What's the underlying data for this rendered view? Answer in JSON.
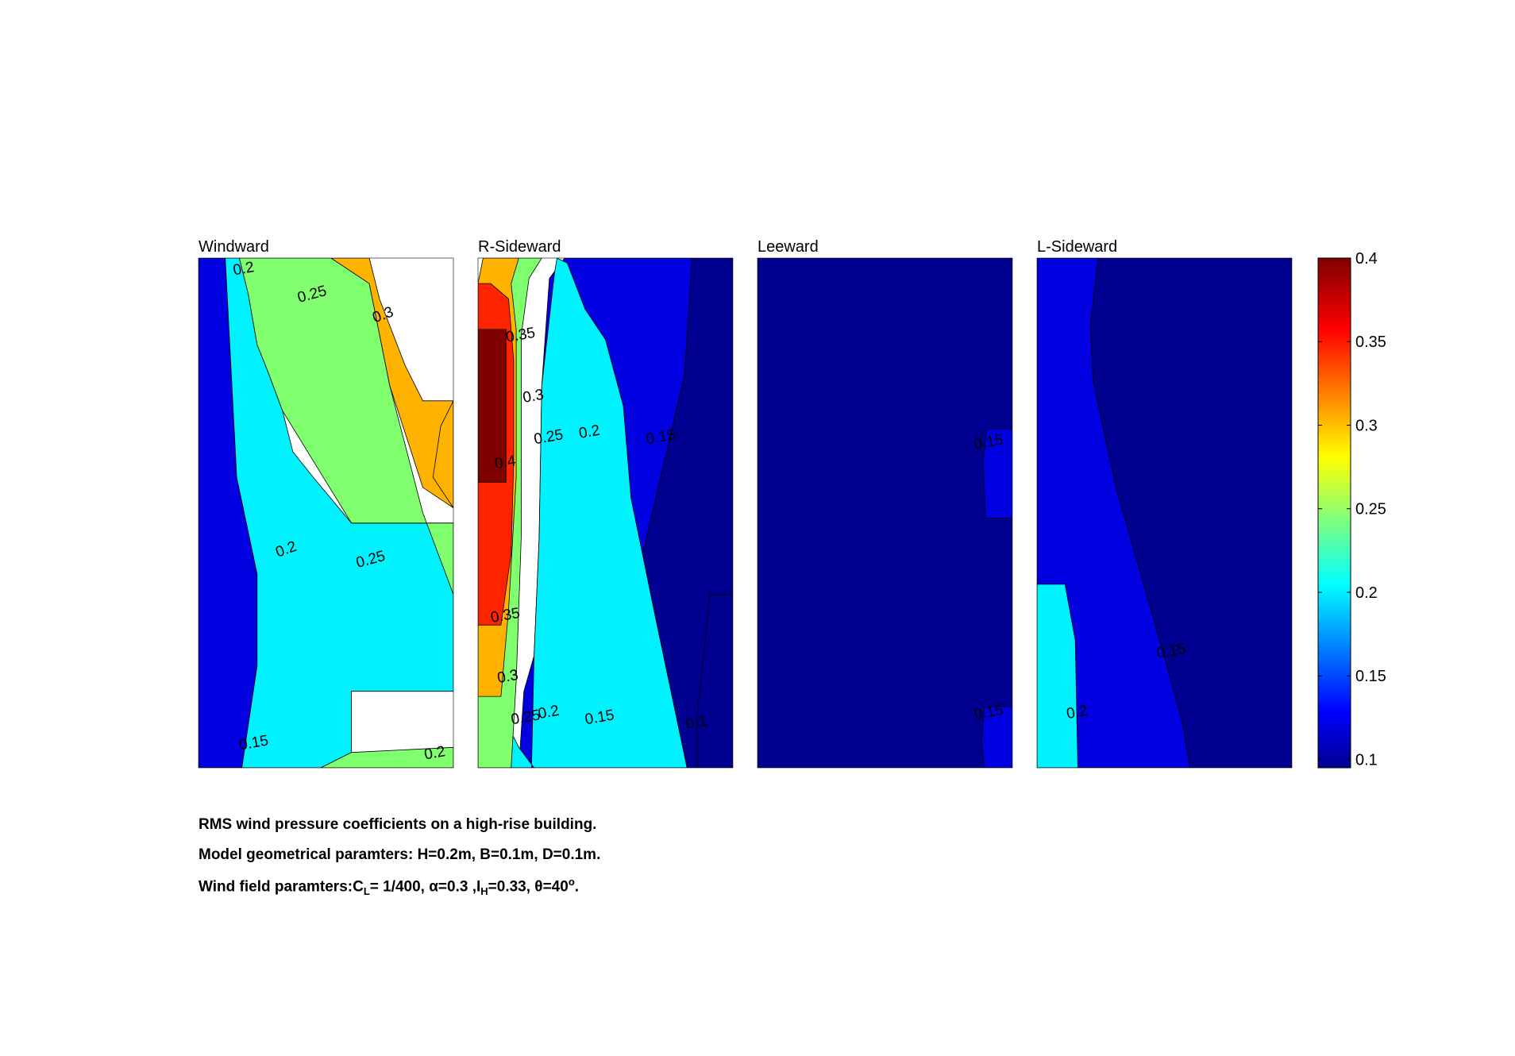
{
  "chart_data": {
    "type": "heatmap",
    "subtype": "filled-contour",
    "panels": [
      {
        "title": "Windward",
        "regions": [
          {
            "level": 0.15,
            "points": [
              [
                0,
                0
              ],
              [
                0.17,
                0
              ],
              [
                0.23,
                0.2
              ],
              [
                0.23,
                0.38
              ],
              [
                0.15,
                0.57
              ],
              [
                0.105,
                1
              ],
              [
                0,
                1
              ]
            ]
          },
          {
            "level": 0.2,
            "points": [
              [
                0.17,
                0
              ],
              [
                0.48,
                0
              ],
              [
                0.6,
                0.03
              ],
              [
                0.6,
                0.15
              ],
              [
                1,
                0.15
              ],
              [
                1,
                0.48
              ],
              [
                0.6,
                0.48
              ],
              [
                0.45,
                0.57
              ],
              [
                0.37,
                0.62
              ],
              [
                0.33,
                0.7
              ],
              [
                0.27,
                0.78
              ],
              [
                0.23,
                0.83
              ],
              [
                0.195,
                0.93
              ],
              [
                0.16,
                1
              ],
              [
                0.105,
                1
              ],
              [
                0.15,
                0.57
              ],
              [
                0.23,
                0.38
              ],
              [
                0.23,
                0.2
              ]
            ]
          },
          {
            "level": 0.15,
            "points": [
              [
                0.75,
                0
              ],
              [
                1,
                0
              ],
              [
                1,
                0.04
              ]
            ]
          },
          {
            "level": 0.25,
            "points": [
              [
                0.48,
                0
              ],
              [
                1,
                0
              ],
              [
                1,
                0.04
              ],
              [
                0.6,
                0.03
              ]
            ]
          },
          {
            "level": 0.25,
            "points": [
              [
                1,
                0.24
              ],
              [
                1,
                0.48
              ],
              [
                0.6,
                0.48
              ],
              [
                0.33,
                0.7
              ],
              [
                0.27,
                0.78
              ],
              [
                0.23,
                0.83
              ],
              [
                0.195,
                0.93
              ],
              [
                0.16,
                1
              ],
              [
                0.52,
                1
              ],
              [
                0.67,
                0.95
              ],
              [
                0.75,
                0.75
              ],
              [
                0.88,
                0.5
              ],
              [
                1,
                0.34
              ]
            ]
          },
          {
            "level": 0.3,
            "points": [
              [
                1,
                0.51
              ],
              [
                1,
                0.72
              ],
              [
                0.88,
                0.72
              ],
              [
                0.81,
                0.79
              ],
              [
                0.71,
                0.92
              ],
              [
                0.67,
                1
              ],
              [
                0.52,
                1
              ],
              [
                0.67,
                0.95
              ],
              [
                0.75,
                0.75
              ],
              [
                0.88,
                0.55
              ]
            ]
          },
          {
            "level": 0.3,
            "points": [
              [
                1,
                0.51
              ],
              [
                1,
                0.72
              ],
              [
                0.95,
                0.67
              ],
              [
                0.92,
                0.57
              ]
            ]
          }
        ],
        "labels": [
          {
            "text": "0.2",
            "x": 0.18,
            "y": 0.97,
            "rot": 10
          },
          {
            "text": "0.25",
            "x": 0.45,
            "y": 0.92,
            "rot": 15
          },
          {
            "text": "0.3",
            "x": 0.73,
            "y": 0.88,
            "rot": 20
          },
          {
            "text": "0.2",
            "x": 0.35,
            "y": 0.42,
            "rot": 20
          },
          {
            "text": "0.25",
            "x": 0.68,
            "y": 0.4,
            "rot": 15
          },
          {
            "text": "0.15",
            "x": 0.22,
            "y": 0.04,
            "rot": 10
          },
          {
            "text": "0.2",
            "x": 0.93,
            "y": 0.02,
            "rot": 10
          }
        ]
      },
      {
        "title": "R-Sideward",
        "regions": [
          {
            "level": 0.1,
            "points": [
              [
                0.89,
                0
              ],
              [
                1,
                0
              ],
              [
                1,
                1
              ],
              [
                0.84,
                1
              ],
              [
                0.81,
                0.77
              ],
              [
                0.74,
                0.62
              ],
              [
                0.59,
                0.3
              ],
              [
                0.52,
                0.14
              ],
              [
                0.5,
                0
              ]
            ]
          },
          {
            "level": 0.15,
            "points": [
              [
                0.16,
                0
              ],
              [
                0.46,
                0
              ],
              [
                0.5,
                0.14
              ],
              [
                0.52,
                0.14
              ],
              [
                0.59,
                0.3
              ],
              [
                0.74,
                0.62
              ],
              [
                0.81,
                0.77
              ],
              [
                0.84,
                1
              ],
              [
                0.34,
                1
              ],
              [
                0.28,
                0.96
              ],
              [
                0.25,
                0.75
              ],
              [
                0.24,
                0.45
              ],
              [
                0.22,
                0.22
              ],
              [
                0.18,
                0.15
              ]
            ]
          },
          {
            "level": 0.1,
            "points": [
              [
                0.86,
                0
              ],
              [
                1,
                0
              ],
              [
                1,
                0.34
              ],
              [
                0.91,
                0.34
              ],
              [
                0.86,
                0.1
              ]
            ]
          },
          {
            "level": 0.2,
            "points": [
              [
                0.08,
                0
              ],
              [
                0.21,
                0
              ],
              [
                0.22,
                0.22
              ],
              [
                0.24,
                0.45
              ],
              [
                0.25,
                0.75
              ],
              [
                0.3,
                0.97
              ],
              [
                0.31,
                1
              ],
              [
                0.35,
                0.99
              ],
              [
                0.42,
                0.9
              ],
              [
                0.5,
                0.84
              ],
              [
                0.57,
                0.71
              ],
              [
                0.6,
                0.53
              ],
              [
                0.69,
                0.31
              ],
              [
                0.82,
                0
              ],
              [
                0.22,
                0
              ],
              [
                0.16,
                0.04
              ],
              [
                0.13,
                0.07
              ],
              [
                0.1,
                0.09
              ]
            ]
          },
          {
            "level": 0.25,
            "points": [
              [
                0,
                0
              ],
              [
                0.13,
                0
              ],
              [
                0.15,
                0.17
              ],
              [
                0.17,
                0.46
              ],
              [
                0.17,
                0.85
              ],
              [
                0.2,
                0.96
              ],
              [
                0.25,
                1
              ],
              [
                0.06,
                1
              ],
              [
                0,
                0.95
              ]
            ]
          },
          {
            "level": 0.3,
            "points": [
              [
                0,
                0.14
              ],
              [
                0.09,
                0.14
              ],
              [
                0.12,
                0.31
              ],
              [
                0.15,
                0.57
              ],
              [
                0.15,
                0.86
              ],
              [
                0.13,
                0.95
              ],
              [
                0.16,
                1
              ],
              [
                0.02,
                1
              ],
              [
                0,
                0.95
              ]
            ]
          },
          {
            "level": 0.35,
            "points": [
              [
                0,
                0.28
              ],
              [
                0.09,
                0.28
              ],
              [
                0.13,
                0.42
              ],
              [
                0.14,
                0.6
              ],
              [
                0.14,
                0.8
              ],
              [
                0.12,
                0.92
              ],
              [
                0.05,
                0.95
              ],
              [
                0,
                0.95
              ]
            ]
          },
          {
            "level": 0.4,
            "points": [
              [
                0,
                0.56
              ],
              [
                0.11,
                0.56
              ],
              [
                0.11,
                0.86
              ],
              [
                0,
                0.86
              ]
            ]
          }
        ],
        "labels": [
          {
            "text": "0.35",
            "x": 0.17,
            "y": 0.84,
            "rot": 10
          },
          {
            "text": "0.3",
            "x": 0.22,
            "y": 0.72,
            "rot": 10
          },
          {
            "text": "0.4",
            "x": 0.11,
            "y": 0.59,
            "rot": 10
          },
          {
            "text": "0.25",
            "x": 0.28,
            "y": 0.64,
            "rot": 10
          },
          {
            "text": "0.2",
            "x": 0.44,
            "y": 0.65,
            "rot": 10
          },
          {
            "text": "0.15",
            "x": 0.72,
            "y": 0.64,
            "rot": 10
          },
          {
            "text": "0.35",
            "x": 0.11,
            "y": 0.29,
            "rot": 10
          },
          {
            "text": "0.3",
            "x": 0.12,
            "y": 0.17,
            "rot": 10
          },
          {
            "text": "0.25",
            "x": 0.19,
            "y": 0.09,
            "rot": 10
          },
          {
            "text": "0.2",
            "x": 0.28,
            "y": 0.1,
            "rot": 10
          },
          {
            "text": "0.15",
            "x": 0.48,
            "y": 0.09,
            "rot": 10
          },
          {
            "text": "0.1",
            "x": 0.86,
            "y": 0.08,
            "rot": 10
          }
        ]
      },
      {
        "title": "Leeward",
        "regions": [
          {
            "level": 0.1,
            "points": [
              [
                0,
                0
              ],
              [
                1,
                0
              ],
              [
                1,
                1
              ],
              [
                0,
                1
              ]
            ]
          },
          {
            "level": 0.15,
            "points": [
              [
                0.895,
                0.49
              ],
              [
                1,
                0.49
              ],
              [
                1,
                0.665
              ],
              [
                0.9,
                0.665
              ],
              [
                0.885,
                0.6
              ]
            ]
          },
          {
            "level": 0.15,
            "points": [
              [
                0.89,
                0
              ],
              [
                1,
                0
              ],
              [
                1,
                0.12
              ],
              [
                0.89,
                0.12
              ],
              [
                0.88,
                0.05
              ]
            ]
          }
        ],
        "labels": [
          {
            "text": "0.15",
            "x": 0.91,
            "y": 0.63,
            "rot": 10
          },
          {
            "text": "0.15",
            "x": 0.91,
            "y": 0.1,
            "rot": 10
          }
        ]
      },
      {
        "title": "L-Sideward",
        "regions": [
          {
            "level": 0.15,
            "points": [
              [
                0,
                0
              ],
              [
                0.6,
                0
              ],
              [
                0.57,
                0.09
              ],
              [
                0.51,
                0.2
              ],
              [
                0.39,
                0.41
              ],
              [
                0.31,
                0.55
              ],
              [
                0.22,
                0.76
              ],
              [
                0.21,
                0.87
              ],
              [
                0.24,
                1
              ],
              [
                0,
                1
              ]
            ]
          },
          {
            "level": 0.1,
            "points": [
              [
                0.6,
                0
              ],
              [
                1,
                0
              ],
              [
                1,
                1
              ],
              [
                0.24,
                1
              ],
              [
                0.21,
                0.87
              ],
              [
                0.22,
                0.76
              ],
              [
                0.31,
                0.55
              ],
              [
                0.39,
                0.41
              ],
              [
                0.51,
                0.2
              ],
              [
                0.57,
                0.09
              ]
            ]
          },
          {
            "level": 0.2,
            "points": [
              [
                0,
                0
              ],
              [
                0.16,
                0
              ],
              [
                0.15,
                0.25
              ],
              [
                0.11,
                0.36
              ],
              [
                0.1,
                0.36
              ],
              [
                0,
                0.36
              ]
            ]
          }
        ],
        "labels": [
          {
            "text": "0.15",
            "x": 0.53,
            "y": 0.22,
            "rot": 10
          },
          {
            "text": "0.2",
            "x": 0.16,
            "y": 0.1,
            "rot": 10
          }
        ]
      }
    ],
    "colorbar": {
      "ticks": [
        "0.4",
        "0.35",
        "0.3",
        "0.25",
        "0.2",
        "0.15",
        "0.1"
      ],
      "range": [
        0.095,
        0.4
      ]
    }
  },
  "captions": {
    "line1": "RMS wind pressure coefficients on a high-rise building.",
    "line2": "Model geometrical paramters: H=0.2m, B=0.1m, D=0.1m.",
    "line3_prefix": "Wind field paramters:C",
    "line3_sub1": "L",
    "line3_mid1": "= 1/400, α=0.3 ,I",
    "line3_sub2": "H",
    "line3_mid2": "=0.33, θ=40",
    "line3_sup": "o",
    "line3_end": "."
  },
  "colors": {
    "0.10": "#000090",
    "0.15": "#0000e0",
    "0.20": "#00f2ff",
    "0.25": "#80ff6f",
    "0.30": "#ffb300",
    "0.35": "#ff2400",
    "0.40": "#800000"
  }
}
